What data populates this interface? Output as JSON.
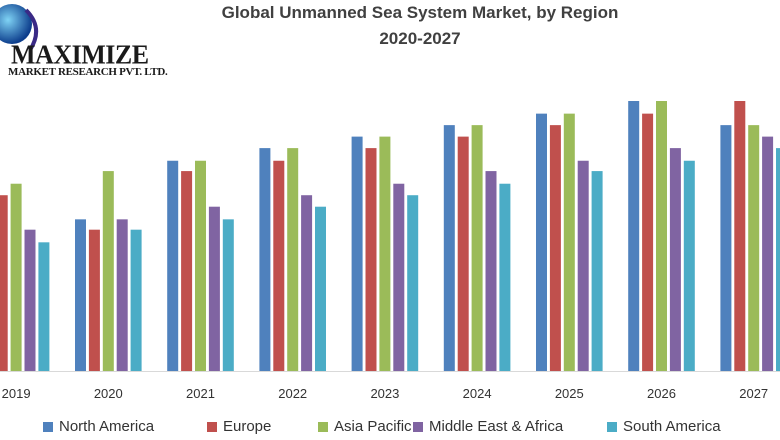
{
  "logo": {
    "name": "MAXIMIZE",
    "subtitle": "MARKET RESEARCH PVT. LTD."
  },
  "chart_data": {
    "type": "bar",
    "title": "Global Unmanned Sea System Market, by Region",
    "subtitle": "2020-2027",
    "xlabel": "",
    "ylabel": "",
    "y_axis_shown": false,
    "grid": false,
    "legend_position": "bottom",
    "ylim": [
      0,
      24
    ],
    "categories": [
      "2019",
      "2020",
      "2021",
      "2022",
      "2023",
      "2024",
      "2025",
      "2026",
      "2027"
    ],
    "series": [
      {
        "name": "North America",
        "color": "#4f81bd",
        "values": [
          null,
          13.2,
          18.3,
          19.4,
          20.4,
          21.4,
          22.4,
          23.5,
          21.4
        ]
      },
      {
        "name": "Europe",
        "color": "#c0504d",
        "values": [
          15.3,
          12.3,
          17.4,
          18.3,
          19.4,
          20.4,
          21.4,
          22.4,
          23.5
        ]
      },
      {
        "name": "Asia Pacific",
        "color": "#9bbb59",
        "values": [
          16.3,
          17.4,
          18.3,
          19.4,
          20.4,
          21.4,
          22.4,
          23.5,
          21.4
        ]
      },
      {
        "name": "Middle East & Africa",
        "color": "#8064a2",
        "values": [
          12.3,
          13.2,
          14.3,
          15.3,
          16.3,
          17.4,
          18.3,
          19.4,
          20.4
        ]
      },
      {
        "name": "South America",
        "color": "#4bacc6",
        "values": [
          11.2,
          12.3,
          13.2,
          14.3,
          15.3,
          16.3,
          17.4,
          18.3,
          19.4
        ]
      }
    ]
  }
}
